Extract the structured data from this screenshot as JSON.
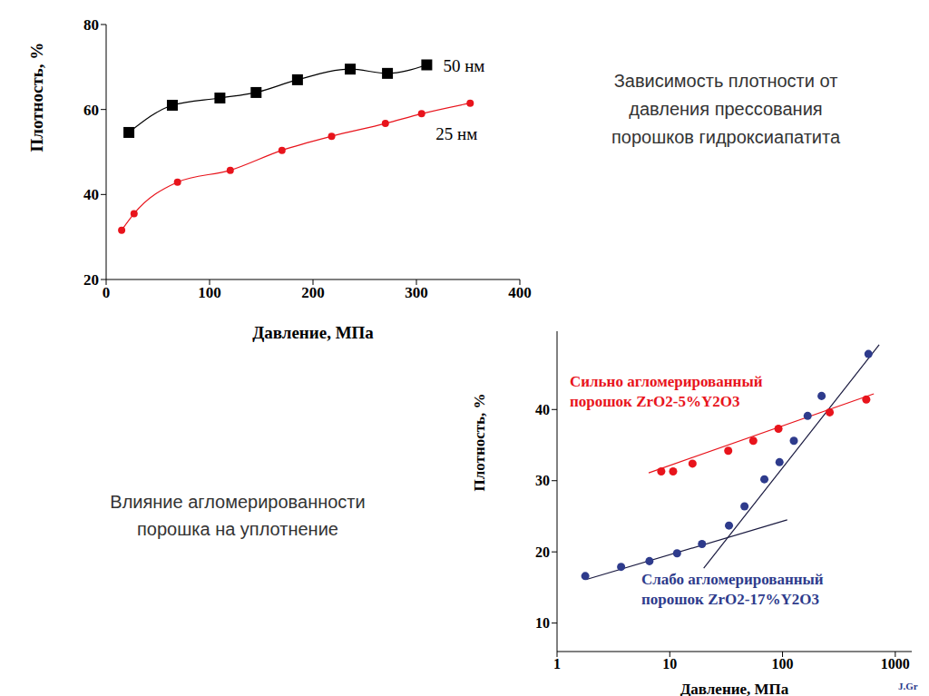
{
  "chart_data": [
    {
      "type": "line",
      "title": "Зависимость плотности от давления прессования порошков гидроксиапатита",
      "x_label": "Давление, МПа",
      "y_label": "Плотность, %",
      "xlim": [
        0,
        400
      ],
      "xticks": [
        0,
        100,
        200,
        300,
        400
      ],
      "ylim": [
        20,
        80
      ],
      "yticks": [
        20,
        40,
        60,
        80
      ],
      "series": [
        {
          "name": "50 нм",
          "color": "#000000",
          "marker": "square",
          "x": [
            22,
            64,
            110,
            145,
            185,
            236,
            272,
            310
          ],
          "values": [
            54.6,
            61,
            62.7,
            64,
            67,
            69.5,
            68.5,
            70.5
          ]
        },
        {
          "name": "25 нм",
          "color": "#e8141c",
          "marker": "circle",
          "x": [
            15,
            27,
            69,
            120,
            170,
            218,
            270,
            305,
            352
          ],
          "values": [
            31.6,
            35.5,
            42.9,
            45.7,
            50.4,
            53.7,
            56.7,
            59,
            61.5
          ]
        }
      ]
    },
    {
      "type": "scatter",
      "title": "Влияние агломерированности порошка на уплотнение",
      "x_label": "Давление, МПа",
      "y_label": "Плотность, %",
      "log": "x",
      "xlim": [
        1,
        1400
      ],
      "xticks": [
        1,
        10,
        100,
        1000
      ],
      "ylim": [
        6,
        51
      ],
      "yticks": [
        10,
        20,
        30,
        40
      ],
      "series": [
        {
          "name": "Сильно агломерированный порошок ZrO2-5%Y2O3",
          "color": "#e8141c",
          "marker": "circle",
          "x": [
            8.4,
            10.7,
            15.9,
            33,
            55,
            92,
            262,
            553
          ],
          "values": [
            31.3,
            31.3,
            32.4,
            34.2,
            35.6,
            37.3,
            39.6,
            41.4
          ]
        },
        {
          "name": "Слабо агломерированный порошок ZrO2-17%Y2O3",
          "color": "#2e3b8c",
          "marker": "circle",
          "x": [
            1.78,
            3.7,
            6.6,
            11.6,
            19.3,
            33.5,
            46,
            69,
            94,
            126,
            167,
            222,
            578
          ],
          "values": [
            16.6,
            17.9,
            18.7,
            19.8,
            21.1,
            23.7,
            26.4,
            30.2,
            32.6,
            35.6,
            39.1,
            41.9,
            47.8
          ]
        }
      ],
      "trend_lines": [
        {
          "color": "#e8141c",
          "x": [
            6.5,
            645
          ],
          "values": [
            31.1,
            42.2
          ]
        },
        {
          "color": "#1a1a40",
          "x": [
            1.8,
            110
          ],
          "values": [
            16.1,
            24.5
          ]
        },
        {
          "color": "#1a1a40",
          "x": [
            20,
            720
          ],
          "values": [
            17.7,
            49.1
          ]
        }
      ]
    }
  ],
  "source": "J.Gr"
}
